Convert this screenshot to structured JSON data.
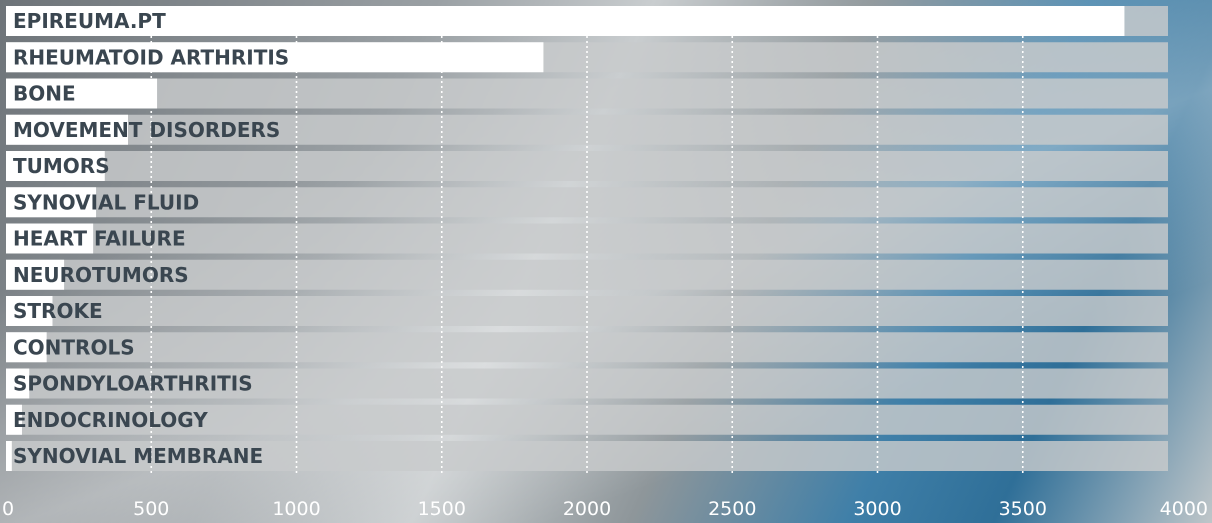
{
  "chart_data": {
    "type": "bar",
    "orientation": "horizontal",
    "title": "",
    "xlabel": "",
    "ylabel": "",
    "xlim": [
      0,
      4000
    ],
    "xticks": [
      0,
      500,
      1000,
      1500,
      2000,
      2500,
      3000,
      3500,
      4000
    ],
    "grid": true,
    "categories": [
      "EPIREUMA.PT",
      "RHEUMATOID ARTHRITIS",
      "BONE",
      "MOVEMENT DISORDERS",
      "TUMORS",
      "SYNOVIAL FLUID",
      "HEART FAILURE",
      "NEUROTUMORS",
      "STROKE",
      "CONTROLS",
      "SPONDYLOARTHRITIS",
      "ENDOCRINOLOGY",
      "SYNOVIAL MEMBRANE"
    ],
    "values": [
      3850,
      1850,
      520,
      420,
      340,
      310,
      300,
      200,
      160,
      140,
      80,
      55,
      20
    ],
    "colors": {
      "bar": "#ffffff",
      "track": "#c8cbcc",
      "label": "#3a4650",
      "tick": "#ffffff"
    }
  }
}
